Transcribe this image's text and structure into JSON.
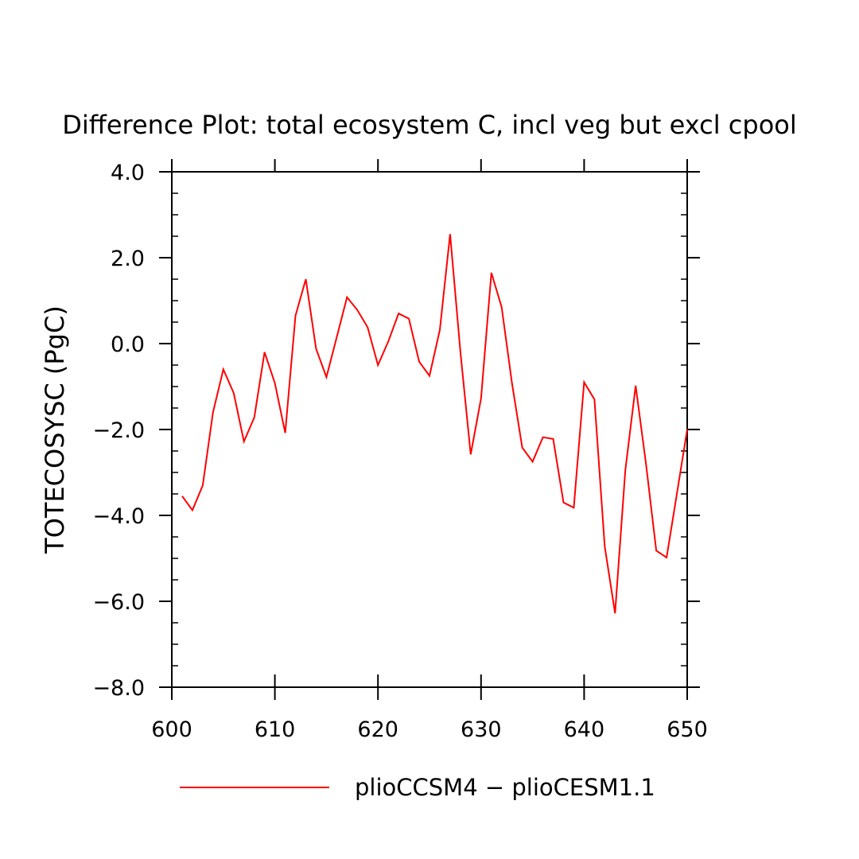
{
  "chart_data": {
    "type": "line",
    "title": "Difference Plot: total ecosystem C, incl veg but excl cpool",
    "xlabel": "",
    "ylabel": "TOTECOSYSC  (PgC)",
    "xlim": [
      600,
      650
    ],
    "ylim": [
      -8.0,
      4.0
    ],
    "x_ticks": [
      600,
      610,
      620,
      630,
      640,
      650
    ],
    "x_tick_labels": [
      "600",
      "610",
      "620",
      "630",
      "640",
      "650"
    ],
    "y_ticks": [
      -8.0,
      -6.0,
      -4.0,
      -2.0,
      0.0,
      2.0,
      4.0
    ],
    "y_tick_labels": [
      "−8.0",
      "−6.0",
      "−4.0",
      "−2.0",
      "0.0",
      "2.0",
      "4.0"
    ],
    "grid": false,
    "legend_position": "bottom",
    "series": [
      {
        "name": "plioCCSM4 − plioCESM1.1",
        "color": "#ff0000",
        "x": [
          601,
          602,
          603,
          604,
          605,
          606,
          607,
          608,
          609,
          610,
          611,
          612,
          613,
          614,
          615,
          616,
          617,
          618,
          619,
          620,
          621,
          622,
          623,
          624,
          625,
          626,
          627,
          628,
          629,
          630,
          631,
          632,
          633,
          634,
          635,
          636,
          637,
          638,
          639,
          640,
          641,
          642,
          643,
          644,
          645,
          646,
          647,
          648,
          649,
          650
        ],
        "values": [
          -3.55,
          -3.88,
          -3.3,
          -1.6,
          -0.6,
          -1.15,
          -2.28,
          -1.72,
          -0.2,
          -0.92,
          -2.08,
          0.65,
          1.5,
          -0.12,
          -0.78,
          0.15,
          1.08,
          0.78,
          0.38,
          -0.5,
          0.05,
          0.7,
          0.58,
          -0.42,
          -0.75,
          0.32,
          2.55,
          -0.2,
          -2.58,
          -1.28,
          1.65,
          0.85,
          -0.92,
          -2.42,
          -2.75,
          -2.18,
          -2.22,
          -3.7,
          -3.82,
          -0.9,
          -1.3,
          -4.72,
          -6.28,
          -2.95,
          -0.98,
          -2.8,
          -4.82,
          -4.98,
          -3.5,
          -2.0
        ]
      }
    ]
  }
}
